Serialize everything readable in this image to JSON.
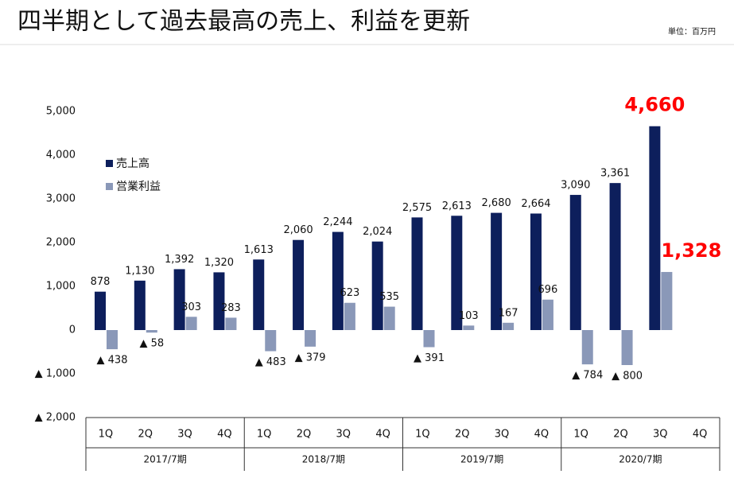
{
  "chart_data": {
    "type": "bar",
    "title": "四半期として過去最高の売上、利益を更新",
    "unit": "単位：百万円",
    "categories": [
      "1Q",
      "2Q",
      "3Q",
      "4Q",
      "1Q",
      "2Q",
      "3Q",
      "4Q",
      "1Q",
      "2Q",
      "3Q",
      "4Q",
      "1Q",
      "2Q",
      "3Q",
      "4Q"
    ],
    "category_groups": [
      "2017/7期",
      "2018/7期",
      "2019/7期",
      "2020/7期"
    ],
    "series": [
      {
        "name": "売上高",
        "color": "#0d1f5c",
        "values": [
          878,
          1130,
          1392,
          1320,
          1613,
          2060,
          2244,
          2024,
          2575,
          2613,
          2680,
          2664,
          3090,
          3361,
          4660,
          null
        ],
        "value_labels": [
          "878",
          "1,130",
          "1,392",
          "1,320",
          "1,613",
          "2,060",
          "2,244",
          "2,024",
          "2,575",
          "2,613",
          "2,680",
          "2,664",
          "3,090",
          "3,361",
          "4,660",
          null
        ]
      },
      {
        "name": "営業利益",
        "color": "#8a98b8",
        "values": [
          -438,
          -58,
          303,
          283,
          -483,
          -379,
          623,
          535,
          -391,
          103,
          167,
          696,
          -784,
          -800,
          1328,
          null
        ],
        "value_labels": [
          "▲ 438",
          "▲ 58",
          "303",
          "283",
          "▲ 483",
          "▲ 379",
          "623",
          "535",
          "▲ 391",
          "103",
          "167",
          "696",
          "▲ 784",
          "▲ 800",
          "1,328",
          null
        ]
      }
    ],
    "ylim": [
      -2000,
      5000
    ],
    "yticks": [
      {
        "value": -2000,
        "label": "▲ 2,000"
      },
      {
        "value": -1000,
        "label": "▲ 1,000"
      },
      0,
      {
        "value": 1000,
        "label": "1,000"
      },
      {
        "value": 2000,
        "label": "2,000"
      },
      {
        "value": 3000,
        "label": "3,000"
      },
      {
        "value": 4000,
        "label": "4,000"
      },
      {
        "value": 5000,
        "label": "5,000"
      }
    ],
    "highlight_color": "#ff0000",
    "legend": "upper left"
  }
}
